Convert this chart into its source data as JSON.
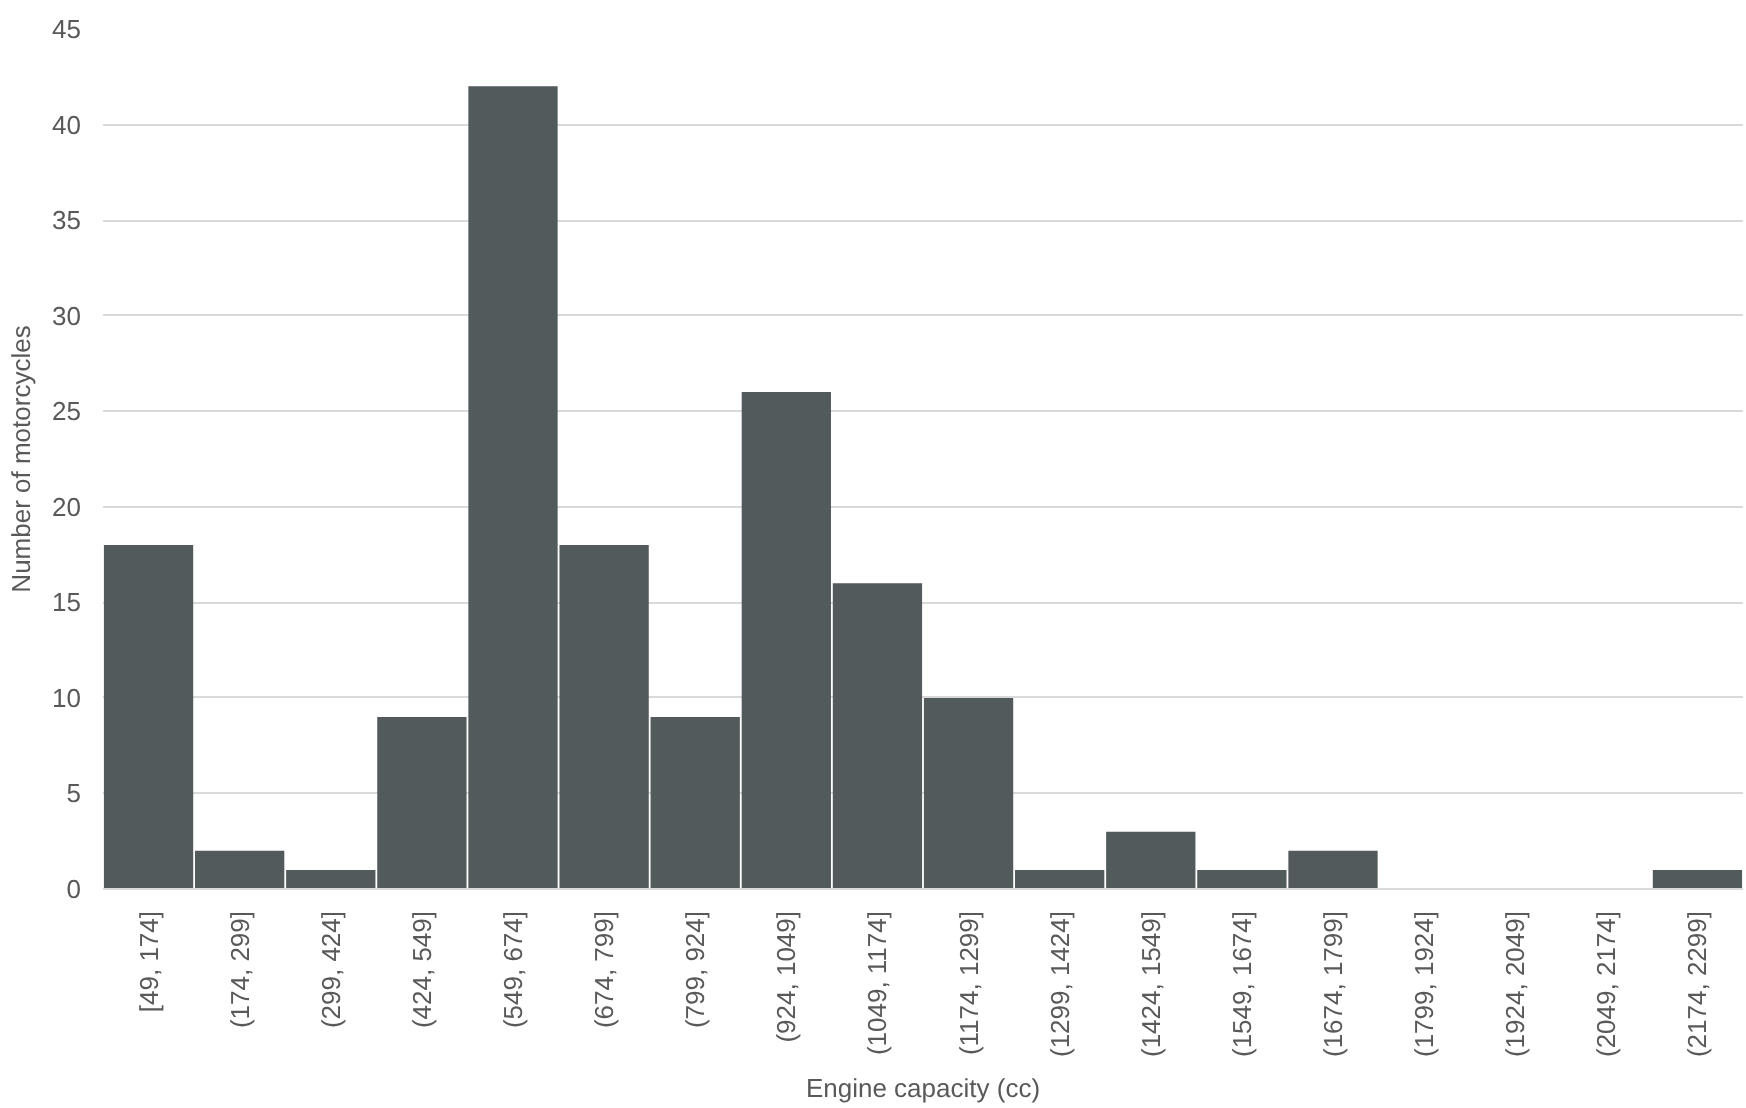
{
  "chart_data": {
    "type": "bar",
    "xlabel": "Engine capacity (cc)",
    "ylabel": "Number of motorcycles",
    "categories": [
      "[49, 174]",
      "(174, 299]",
      "(299, 424]",
      "(424, 549]",
      "(549, 674]",
      "(674, 799]",
      "(799, 924]",
      "(924, 1049]",
      "(1049, 1174]",
      "(1174, 1299]",
      "(1299, 1424]",
      "(1424, 1549]",
      "(1549, 1674]",
      "(1674, 1799]",
      "(1799, 1924]",
      "(1924, 2049]",
      "(2049, 2174]",
      "(2174, 2299]"
    ],
    "values": [
      18,
      2,
      1,
      9,
      42,
      18,
      9,
      26,
      16,
      10,
      1,
      3,
      1,
      2,
      0,
      0,
      0,
      1
    ],
    "color": "#525a5c",
    "ylim": [
      0,
      45
    ],
    "yticks": [
      0,
      5,
      10,
      15,
      20,
      25,
      30,
      35,
      40,
      45
    ],
    "grid": "y"
  }
}
